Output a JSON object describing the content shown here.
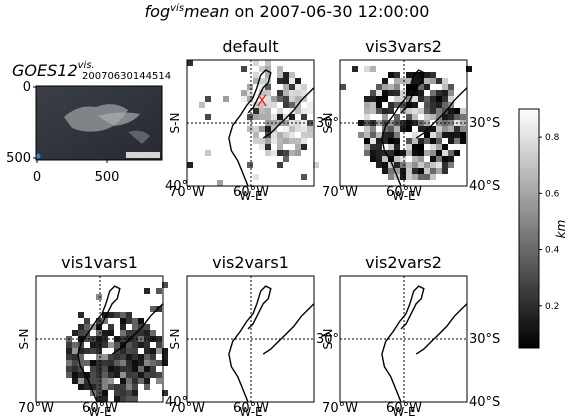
{
  "figure": {
    "title_main": "fog",
    "title_sup": "vis",
    "title_mid": "mean",
    "title_rest": " on 2007-06-30 12:00:00"
  },
  "goes_panel": {
    "title_main": "GOES12",
    "title_sup": "vis.",
    "title_sub": "20070630144514",
    "y_ticks": [
      "0",
      "500"
    ],
    "x_ticks": [
      "0",
      "500"
    ]
  },
  "map_axes": {
    "ylabel": "S-N",
    "xlabel": "W-E",
    "x_ticks": [
      "70°W",
      "60°W"
    ],
    "y_ticks_right": [
      "30°S",
      "40°S"
    ],
    "y_tick_inner": "30°"
  },
  "panels": [
    {
      "id": "default",
      "title": "default"
    },
    {
      "id": "vis3vars2",
      "title": "vis3vars2"
    },
    {
      "id": "vis1vars1",
      "title": "vis1vars1"
    },
    {
      "id": "vis2vars1",
      "title": "vis2vars1"
    },
    {
      "id": "vis2vars2",
      "title": "vis2vars2"
    }
  ],
  "colorbar": {
    "label": "km",
    "ticks": [
      "0.8",
      "0.6",
      "0.4",
      "0.2"
    ],
    "tick_values": [
      0.8,
      0.6,
      0.4,
      0.2
    ],
    "range": [
      0.05,
      0.9
    ],
    "colormap": "gray"
  },
  "marker": {
    "symbol": "X",
    "color": "#e8262d"
  },
  "chart_data": {
    "type": "heatmap",
    "title": "fog vis mean on 2007-06-30 12:00:00",
    "xlabel": "W-E",
    "ylabel": "S-N",
    "colorbar_label": "km",
    "colorbar_range": [
      0.05,
      0.9
    ],
    "panels": [
      "default",
      "vis3vars2",
      "vis1vars1",
      "vis2vars1",
      "vis2vars2"
    ],
    "map_extent": {
      "lon": [
        "70°W",
        "55°W"
      ],
      "lat": [
        "26°S",
        "40°S"
      ]
    },
    "gridlines": {
      "lon": "60°W",
      "lat": "30°S"
    }
  }
}
